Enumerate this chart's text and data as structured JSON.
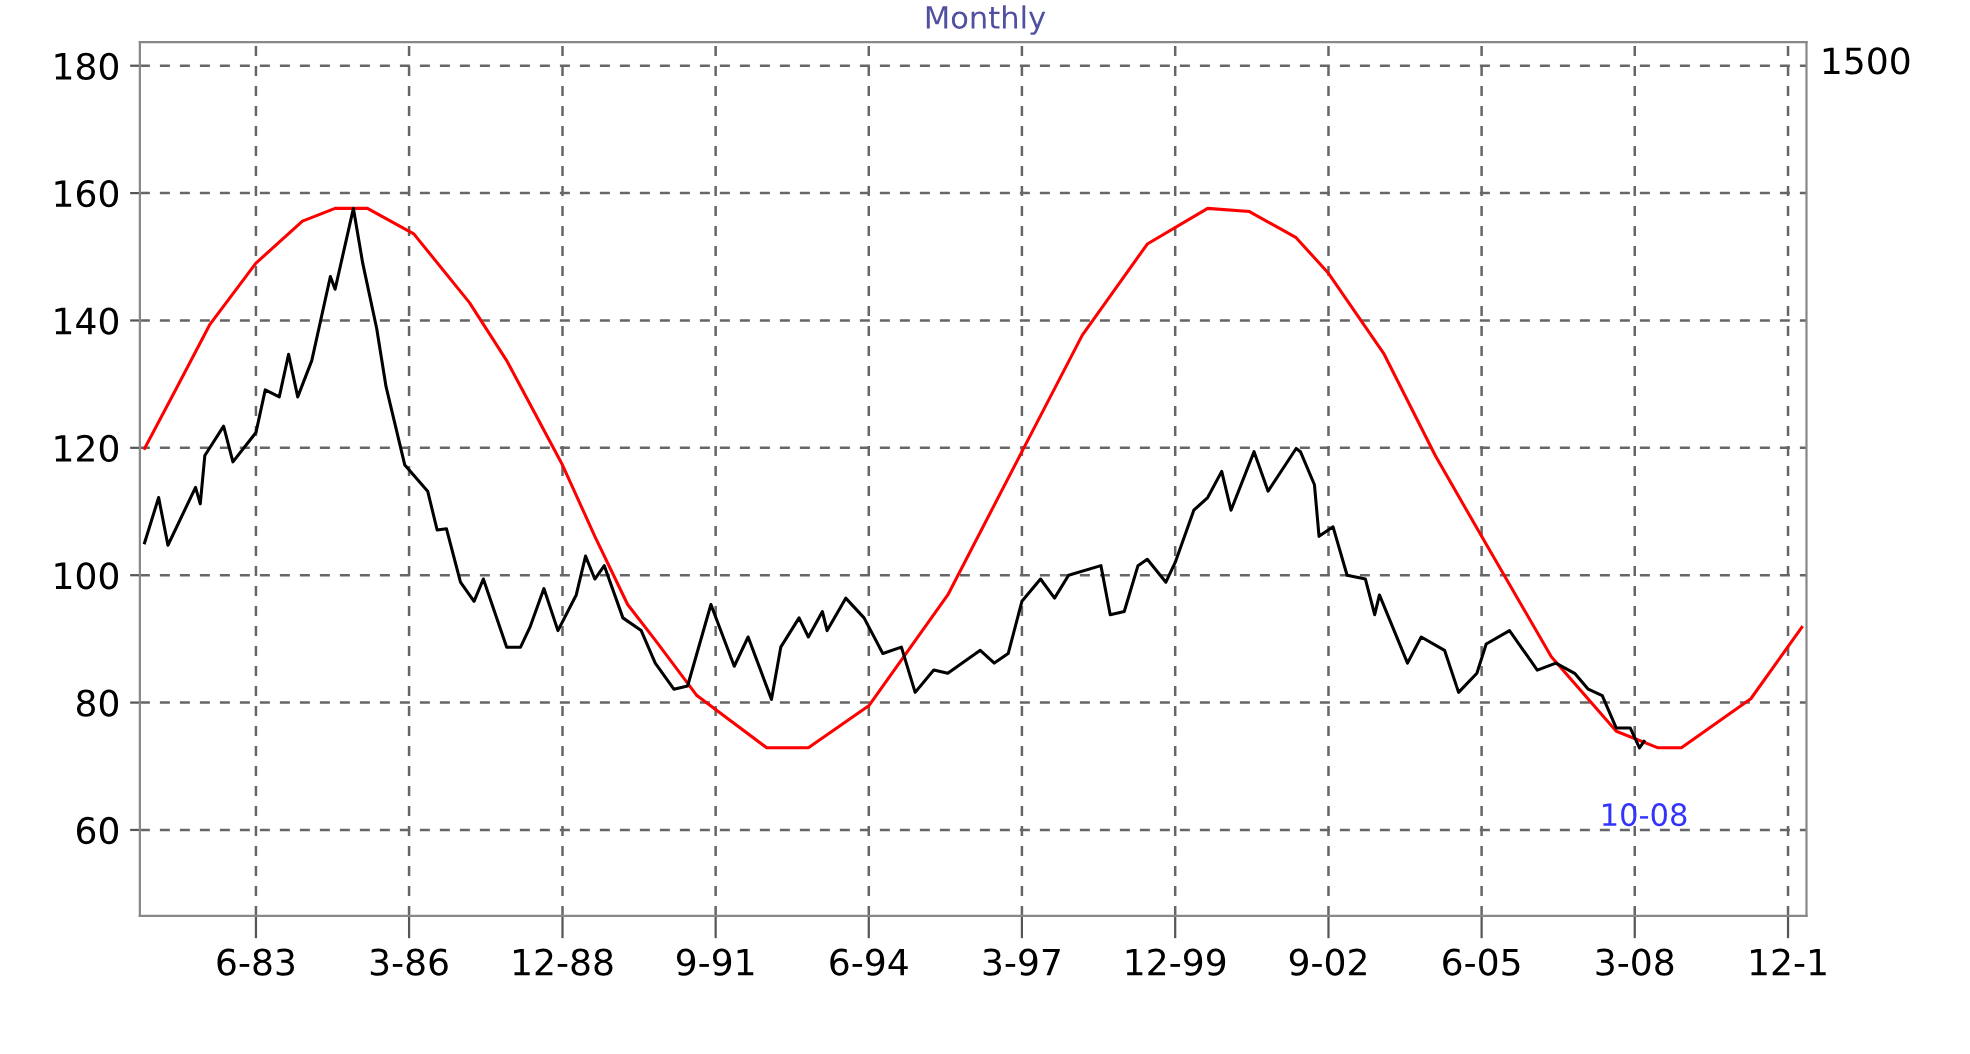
{
  "chart_data": {
    "type": "line",
    "title": "Monthly",
    "series": [
      {
        "color": "#ff0000",
        "x": [
          "1981-06",
          "1982-01",
          "1982-08",
          "1983-06",
          "1984-04",
          "1984-11",
          "1985-06",
          "1986-04",
          "1987-04",
          "1987-12",
          "1988-06",
          "1988-12",
          "1989-07",
          "1990-02",
          "1990-08",
          "1991-05",
          "1992-08",
          "1993-05",
          "1994-06",
          "1995-11",
          "1997-03",
          "1998-04",
          "1999-06",
          "2000-07",
          "2001-04",
          "2002-02",
          "2002-09",
          "2003-09",
          "2004-08",
          "2005-06",
          "2006-09",
          "2007-11",
          "2008-08",
          "2009-01",
          "2010-04",
          "2011-03"
        ],
        "values": [
          119.9,
          129.6,
          139.3,
          149,
          155.6,
          157.6,
          157.6,
          153.6,
          142.8,
          133.7,
          125.5,
          117.3,
          106.1,
          95.4,
          89.8,
          81.1,
          72.9,
          72.9,
          79.5,
          96.9,
          119.4,
          137.7,
          152,
          157.6,
          157.1,
          153,
          147.4,
          134.7,
          118.8,
          106.1,
          87.2,
          75.5,
          72.9,
          72.9,
          80.6,
          91.8
        ]
      },
      {
        "color": "#000000",
        "x": [
          "1981-06",
          "1981-09",
          "1981-11",
          "1982-05",
          "1982-06",
          "1982-07",
          "1982-11",
          "1983-01",
          "1983-06",
          "1983-08",
          "1983-11",
          "1984-01",
          "1984-03",
          "1984-06",
          "1984-10",
          "1984-11",
          "1985-03",
          "1985-05",
          "1985-08",
          "1985-10",
          "1986-02",
          "1986-07",
          "1986-09",
          "1986-11",
          "1987-02",
          "1987-05",
          "1987-07",
          "1987-12",
          "1988-03",
          "1988-05",
          "1988-08",
          "1988-11",
          "1989-03",
          "1989-05",
          "1989-07",
          "1989-09",
          "1990-01",
          "1990-05",
          "1990-08",
          "1990-12",
          "1991-03",
          "1991-08",
          "1992-01",
          "1992-04",
          "1992-09",
          "1992-11",
          "1993-03",
          "1993-05",
          "1993-08",
          "1993-09",
          "1994-01",
          "1994-05",
          "1994-09",
          "1995-01",
          "1995-04",
          "1995-08",
          "1995-11",
          "1996-06",
          "1996-09",
          "1996-12",
          "1997-03",
          "1997-07",
          "1997-10",
          "1998-01",
          "1998-08",
          "1998-10",
          "1999-01",
          "1999-04",
          "1999-06",
          "1999-10",
          "1999-12",
          "2000-04",
          "2000-07",
          "2000-10",
          "2000-12",
          "2001-05",
          "2001-08",
          "2002-02",
          "2002-03",
          "2002-06",
          "2002-07",
          "2002-10",
          "2003-01",
          "2003-05",
          "2003-07",
          "2003-08",
          "2004-02",
          "2004-05",
          "2004-10",
          "2005-01",
          "2005-05",
          "2005-07",
          "2005-12",
          "2006-06",
          "2006-10",
          "2007-02",
          "2007-05",
          "2007-08",
          "2007-11",
          "2008-02",
          "2008-04",
          "2008-05"
        ],
        "values": [
          105.1,
          112.2,
          104.7,
          113.8,
          111.2,
          118.8,
          123.4,
          117.8,
          122.4,
          129.1,
          128,
          134.7,
          128,
          133.7,
          146.9,
          144.9,
          157.6,
          149,
          138.7,
          129.6,
          117.3,
          113.2,
          107.1,
          107.3,
          98.9,
          95.9,
          99.4,
          88.7,
          88.7,
          91.8,
          97.9,
          91.3,
          96.9,
          103,
          99.4,
          101.5,
          93.3,
          91.3,
          86.2,
          82.1,
          82.6,
          95.4,
          85.7,
          90.3,
          80.5,
          88.7,
          93.3,
          90.3,
          94.3,
          91.3,
          96.4,
          93.3,
          87.7,
          88.7,
          81.6,
          85.1,
          84.6,
          88.2,
          86.2,
          87.7,
          95.9,
          99.4,
          96.4,
          100,
          101.5,
          93.8,
          94.3,
          101.5,
          102.5,
          98.9,
          102,
          110.2,
          112.2,
          116.3,
          110.2,
          119.4,
          113.2,
          119.9,
          119.4,
          114.2,
          106.1,
          107.6,
          100,
          99.4,
          93.8,
          96.9,
          86.2,
          90.3,
          88.2,
          81.6,
          84.6,
          89.2,
          91.3,
          85.1,
          86.2,
          84.6,
          82.1,
          81.1,
          76,
          76,
          72.9,
          73.9
        ]
      }
    ],
    "xlim": [
      "1981-05",
      "2011-04"
    ],
    "xticks": [
      {
        "value": "1983-06",
        "label": "6-83"
      },
      {
        "value": "1986-03",
        "label": "3-86"
      },
      {
        "value": "1988-12",
        "label": "12-88"
      },
      {
        "value": "1991-09",
        "label": "9-91"
      },
      {
        "value": "1994-06",
        "label": "6-94"
      },
      {
        "value": "1997-03",
        "label": "3-97"
      },
      {
        "value": "1999-12",
        "label": "12-99"
      },
      {
        "value": "2002-09",
        "label": "9-02"
      },
      {
        "value": "2005-06",
        "label": "6-05"
      },
      {
        "value": "2008-03",
        "label": "3-08"
      },
      {
        "value": "2010-12",
        "label": "12-1"
      }
    ],
    "ylim": [
      46.5,
      183.7
    ],
    "yticks": [
      60,
      80,
      100,
      120,
      140,
      160,
      180
    ],
    "annotations": [
      {
        "text": "10-08",
        "x": "2008-05",
        "y": 73.9
      },
      "1500"
    ],
    "grid": true,
    "line_style": "solid",
    "marker": "none"
  }
}
